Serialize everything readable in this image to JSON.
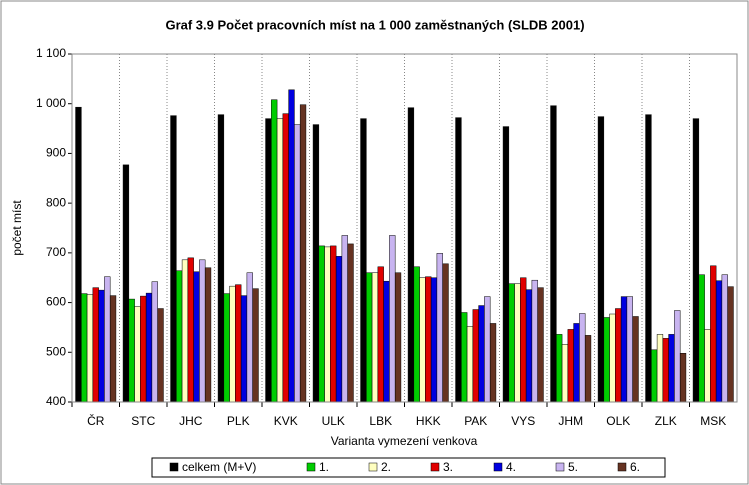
{
  "chart_data": {
    "type": "bar",
    "title": "Graf 3.9 Počet pracovních míst na 1 000 zaměstnaných (SLDB 2001)",
    "x_label": "Varianta vymezení venkova",
    "y_label": "počet míst",
    "categories": [
      "ČR",
      "STC",
      "JHC",
      "PLK",
      "KVK",
      "ULK",
      "LBK",
      "HKK",
      "PAK",
      "VYS",
      "JHM",
      "OLK",
      "ZLK",
      "MSK"
    ],
    "series": [
      {
        "name": "celkem (M+V)",
        "color": "#000000",
        "values": [
          993,
          877,
          976,
          978,
          970,
          958,
          970,
          992,
          972,
          954,
          996,
          974,
          978,
          970
        ]
      },
      {
        "name": "1.",
        "color": "#00cc00",
        "values": [
          618,
          607,
          664,
          618,
          1008,
          714,
          660,
          672,
          580,
          638,
          536,
          570,
          505,
          656
        ]
      },
      {
        "name": "2.",
        "color": "#ffffc0",
        "values": [
          616,
          592,
          686,
          633,
          970,
          712,
          660,
          650,
          552,
          638,
          516,
          577,
          536,
          546
        ]
      },
      {
        "name": "3.",
        "color": "#e00000",
        "values": [
          630,
          613,
          690,
          636,
          980,
          714,
          672,
          652,
          586,
          650,
          546,
          588,
          528,
          674
        ]
      },
      {
        "name": "4.",
        "color": "#0000e0",
        "values": [
          625,
          619,
          662,
          614,
          1028,
          693,
          643,
          650,
          594,
          626,
          558,
          612,
          536,
          644
        ]
      },
      {
        "name": "5.",
        "color": "#c8b4f0",
        "values": [
          652,
          642,
          686,
          660,
          958,
          735,
          735,
          699,
          612,
          645,
          578,
          612,
          584,
          656
        ]
      },
      {
        "name": "6.",
        "color": "#663322",
        "values": [
          614,
          588,
          670,
          628,
          998,
          718,
          660,
          678,
          558,
          630,
          534,
          572,
          498,
          632
        ]
      }
    ],
    "ylim": [
      400,
      1100
    ],
    "yticks": [
      400,
      500,
      600,
      700,
      800,
      900,
      {
        "value": 1000,
        "label": "1 000"
      },
      {
        "value": 1100,
        "label": "1 100"
      }
    ]
  }
}
